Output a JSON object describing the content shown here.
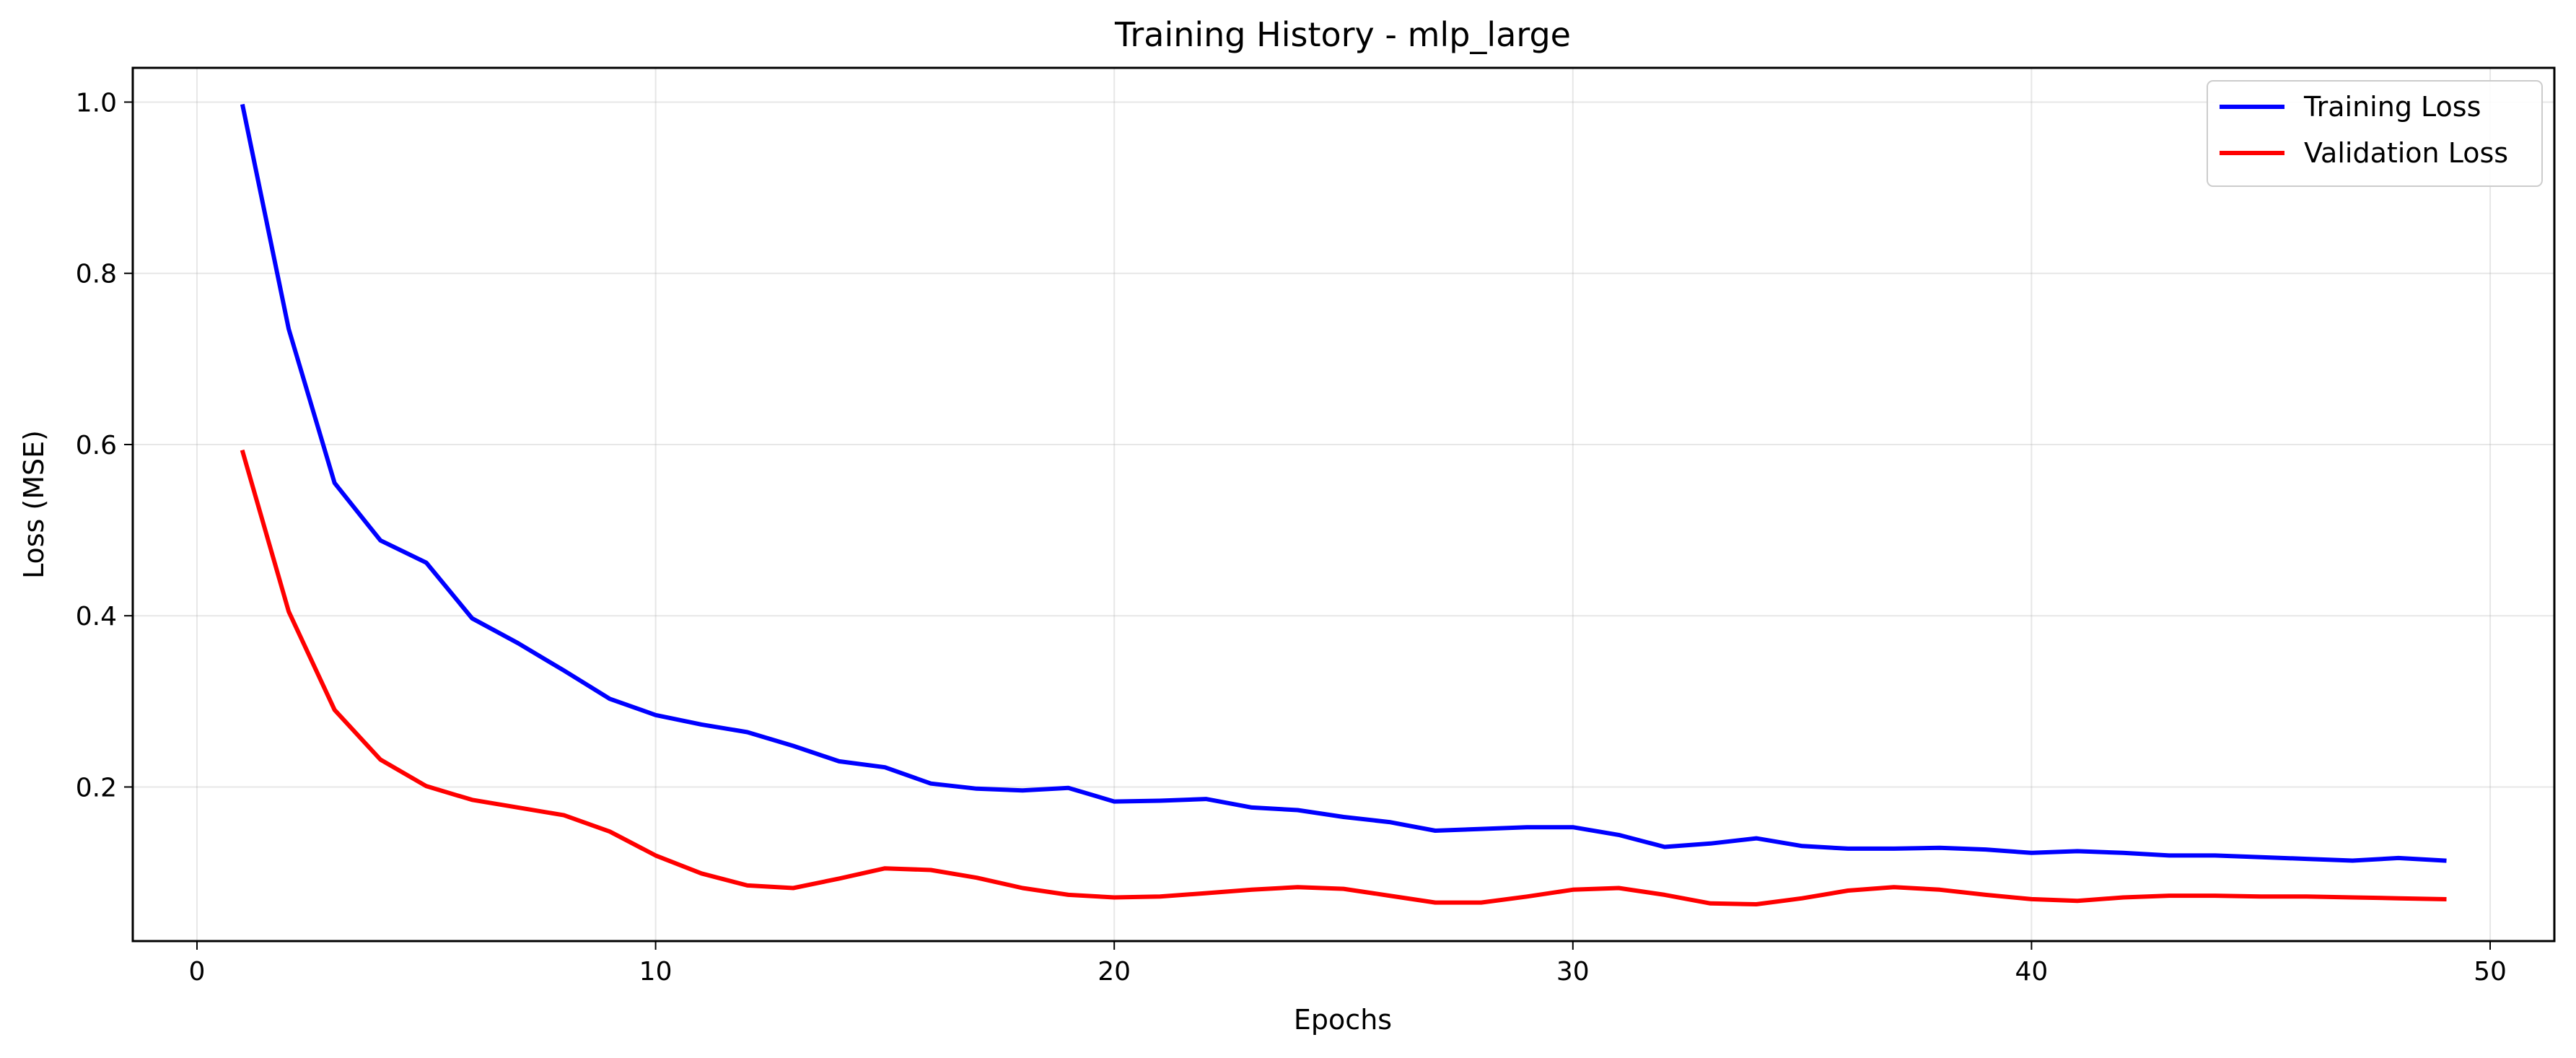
{
  "chart_data": {
    "type": "line",
    "title": "Training History - mlp_large",
    "xlabel": "Epochs",
    "ylabel": "Loss (MSE)",
    "xlim": [
      -1.4,
      51.4
    ],
    "ylim": [
      0.02,
      1.04
    ],
    "xticks": [
      0,
      10,
      20,
      30,
      40,
      50
    ],
    "yticks": [
      0.2,
      0.4,
      0.6,
      0.8,
      1.0
    ],
    "xtick_labels": [
      "0",
      "10",
      "20",
      "30",
      "40",
      "50"
    ],
    "ytick_labels": [
      "0.2",
      "0.4",
      "0.6",
      "0.8",
      "1.0"
    ],
    "grid": true,
    "legend_position": "top-right",
    "x": [
      1,
      2,
      3,
      4,
      5,
      6,
      7,
      8,
      9,
      10,
      11,
      12,
      13,
      14,
      15,
      16,
      17,
      18,
      19,
      20,
      21,
      22,
      23,
      24,
      25,
      26,
      27,
      28,
      29,
      30,
      31,
      32,
      33,
      34,
      35,
      36,
      37,
      38,
      39,
      40,
      41,
      42,
      43,
      44,
      45,
      46,
      47,
      48,
      49
    ],
    "series": [
      {
        "name": "Training Loss",
        "color": "#0000ff",
        "values": [
          0.995,
          0.735,
          0.555,
          0.488,
          0.462,
          0.397,
          0.368,
          0.336,
          0.303,
          0.284,
          0.273,
          0.264,
          0.248,
          0.23,
          0.223,
          0.204,
          0.198,
          0.196,
          0.199,
          0.183,
          0.184,
          0.186,
          0.176,
          0.173,
          0.165,
          0.159,
          0.149,
          0.151,
          0.153,
          0.153,
          0.144,
          0.13,
          0.134,
          0.14,
          0.131,
          0.128,
          0.128,
          0.129,
          0.127,
          0.123,
          0.125,
          0.123,
          0.12,
          0.12,
          0.118,
          0.116,
          0.114,
          0.117,
          0.114
        ]
      },
      {
        "name": "Validation Loss",
        "color": "#ff0000",
        "values": [
          0.591,
          0.405,
          0.29,
          0.232,
          0.201,
          0.185,
          0.176,
          0.167,
          0.148,
          0.12,
          0.099,
          0.085,
          0.082,
          0.093,
          0.105,
          0.103,
          0.094,
          0.082,
          0.074,
          0.071,
          0.072,
          0.076,
          0.08,
          0.083,
          0.081,
          0.073,
          0.065,
          0.065,
          0.072,
          0.08,
          0.082,
          0.074,
          0.064,
          0.063,
          0.07,
          0.079,
          0.083,
          0.08,
          0.074,
          0.069,
          0.067,
          0.071,
          0.073,
          0.073,
          0.072,
          0.072,
          0.071,
          0.07,
          0.069
        ]
      }
    ]
  }
}
